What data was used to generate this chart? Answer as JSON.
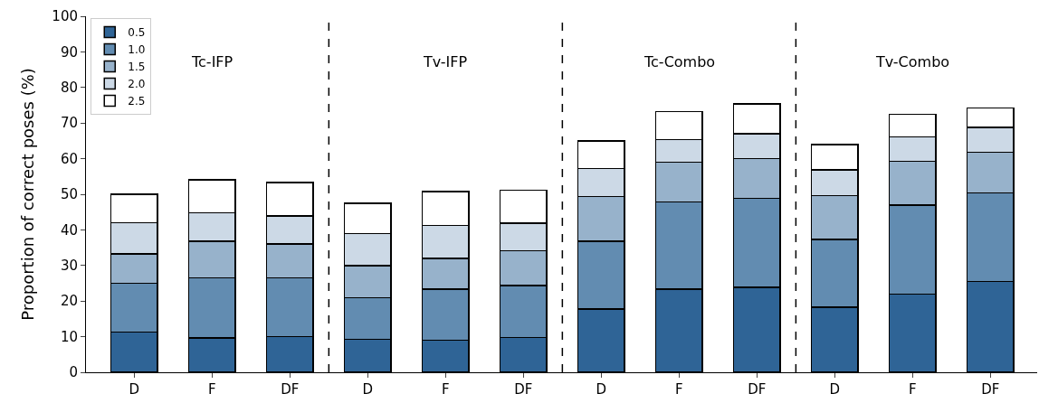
{
  "chart_data": {
    "type": "bar",
    "stacked": true,
    "ylabel": "Proportion of correct poses (%)",
    "categories": [
      "D",
      "F",
      "DF",
      "D",
      "F",
      "DF",
      "D",
      "F",
      "DF",
      "D",
      "F",
      "DF"
    ],
    "series": [
      {
        "name": "0.5",
        "color": "#2f6496",
        "values": [
          11.3,
          9.6,
          10,
          9.3,
          9,
          9.8,
          17.8,
          23.3,
          23.8,
          18.3,
          22,
          25.5
        ]
      },
      {
        "name": "1.0",
        "color": "#628cb1",
        "values": [
          13.7,
          16.9,
          16.5,
          11.7,
          14.3,
          14.6,
          19,
          24.5,
          25,
          19,
          25,
          24.9
        ]
      },
      {
        "name": "1.5",
        "color": "#97b2cb",
        "values": [
          8.3,
          10.3,
          9.5,
          9,
          8.7,
          9.8,
          12.6,
          11.2,
          11.2,
          12.3,
          12.3,
          11.4
        ]
      },
      {
        "name": "2.0",
        "color": "#ccd9e6",
        "values": [
          8.7,
          8,
          7.9,
          9,
          9.3,
          7.7,
          7.8,
          6.4,
          7,
          7.2,
          6.8,
          7
        ]
      },
      {
        "name": "2.5",
        "color": "#ffffff",
        "values": [
          8,
          9.2,
          9.4,
          8.5,
          9.4,
          9.3,
          7.8,
          7.8,
          8.4,
          7.1,
          6.3,
          5.4
        ]
      }
    ],
    "annotations": [
      "Tc-IFP",
      "Tv-IFP",
      "Tc-Combo",
      "Tv-Combo"
    ],
    "ylim": [
      0,
      100
    ],
    "yticks": [
      0,
      10,
      20,
      30,
      40,
      50,
      60,
      70,
      80,
      90,
      100
    ],
    "legend": "top left"
  }
}
